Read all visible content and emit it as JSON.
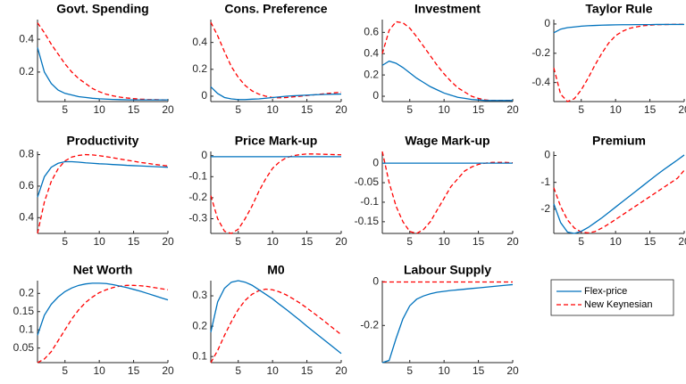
{
  "chart_data": [
    {
      "type": "line",
      "title": "Govt. Spending",
      "x": [
        1,
        2,
        3,
        4,
        5,
        6,
        7,
        8,
        9,
        10,
        11,
        12,
        13,
        14,
        15,
        16,
        17,
        18,
        19,
        20
      ],
      "xlim": [
        1,
        20
      ],
      "xticks": [
        5,
        10,
        15,
        20
      ],
      "ylim": [
        0.02,
        0.52
      ],
      "yticks": [
        0.2,
        0.4
      ],
      "series": [
        {
          "values": [
            0.35,
            0.2,
            0.13,
            0.09,
            0.07,
            0.06,
            0.05,
            0.045,
            0.04,
            0.037,
            0.035,
            0.033,
            0.032,
            0.031,
            0.03,
            0.03,
            0.03,
            0.03,
            0.03,
            0.03
          ]
        },
        {
          "values": [
            0.5,
            0.44,
            0.37,
            0.31,
            0.25,
            0.2,
            0.16,
            0.13,
            0.1,
            0.08,
            0.065,
            0.055,
            0.047,
            0.042,
            0.038,
            0.035,
            0.033,
            0.032,
            0.031,
            0.03
          ]
        }
      ]
    },
    {
      "type": "line",
      "title": "Cons. Preference",
      "x": [
        1,
        2,
        3,
        4,
        5,
        6,
        7,
        8,
        9,
        10,
        11,
        12,
        13,
        14,
        15,
        16,
        17,
        18,
        19,
        20
      ],
      "xlim": [
        1,
        20
      ],
      "xticks": [
        5,
        10,
        15,
        20
      ],
      "ylim": [
        -0.04,
        0.57
      ],
      "yticks": [
        0,
        0.2,
        0.4
      ],
      "series": [
        {
          "values": [
            0.07,
            0.02,
            -0.01,
            -0.02,
            -0.025,
            -0.025,
            -0.022,
            -0.02,
            -0.015,
            -0.01,
            -0.005,
            0,
            0.003,
            0.005,
            0.008,
            0.01,
            0.012,
            0.014,
            0.015,
            0.016
          ]
        },
        {
          "values": [
            0.55,
            0.45,
            0.33,
            0.22,
            0.14,
            0.08,
            0.04,
            0.015,
            0,
            -0.01,
            -0.012,
            -0.01,
            -0.005,
            0,
            0.005,
            0.01,
            0.015,
            0.02,
            0.025,
            0.03
          ]
        }
      ]
    },
    {
      "type": "line",
      "title": "Investment",
      "x": [
        1,
        2,
        3,
        4,
        5,
        6,
        7,
        8,
        9,
        10,
        11,
        12,
        13,
        14,
        15,
        16,
        17,
        18,
        19,
        20
      ],
      "xlim": [
        1,
        20
      ],
      "xticks": [
        5,
        10,
        15,
        20
      ],
      "ylim": [
        -0.05,
        0.72
      ],
      "yticks": [
        0,
        0.2,
        0.4,
        0.6
      ],
      "series": [
        {
          "values": [
            0.29,
            0.33,
            0.31,
            0.27,
            0.22,
            0.17,
            0.13,
            0.09,
            0.06,
            0.03,
            0.01,
            -0.01,
            -0.02,
            -0.03,
            -0.035,
            -0.04,
            -0.04,
            -0.04,
            -0.04,
            -0.04
          ]
        },
        {
          "values": [
            0.4,
            0.62,
            0.7,
            0.69,
            0.64,
            0.56,
            0.47,
            0.38,
            0.29,
            0.21,
            0.14,
            0.08,
            0.04,
            0,
            -0.02,
            -0.035,
            -0.04,
            -0.04,
            -0.04,
            -0.04
          ]
        }
      ]
    },
    {
      "type": "line",
      "title": "Taylor Rule",
      "x": [
        1,
        2,
        3,
        4,
        5,
        6,
        7,
        8,
        9,
        10,
        11,
        12,
        13,
        14,
        15,
        16,
        17,
        18,
        19,
        20
      ],
      "xlim": [
        1,
        20
      ],
      "xticks": [
        5,
        10,
        15,
        20
      ],
      "ylim": [
        -0.53,
        0.03
      ],
      "yticks": [
        -0.4,
        -0.2,
        0
      ],
      "series": [
        {
          "values": [
            -0.06,
            -0.035,
            -0.025,
            -0.02,
            -0.015,
            -0.012,
            -0.01,
            -0.008,
            -0.007,
            -0.006,
            -0.005,
            -0.005,
            -0.004,
            -0.004,
            -0.004,
            -0.003,
            -0.003,
            -0.003,
            -0.003,
            -0.003
          ]
        },
        {
          "values": [
            -0.3,
            -0.48,
            -0.53,
            -0.51,
            -0.45,
            -0.37,
            -0.28,
            -0.2,
            -0.13,
            -0.08,
            -0.05,
            -0.03,
            -0.02,
            -0.012,
            -0.008,
            -0.005,
            -0.004,
            -0.003,
            -0.002,
            -0.002
          ]
        }
      ]
    },
    {
      "type": "line",
      "title": "Productivity",
      "x": [
        1,
        2,
        3,
        4,
        5,
        6,
        7,
        8,
        9,
        10,
        11,
        12,
        13,
        14,
        15,
        16,
        17,
        18,
        19,
        20
      ],
      "xlim": [
        1,
        20
      ],
      "xticks": [
        5,
        10,
        15,
        20
      ],
      "ylim": [
        0.3,
        0.82
      ],
      "yticks": [
        0.4,
        0.6,
        0.8
      ],
      "series": [
        {
          "values": [
            0.53,
            0.66,
            0.72,
            0.745,
            0.755,
            0.755,
            0.752,
            0.748,
            0.745,
            0.742,
            0.74,
            0.737,
            0.735,
            0.732,
            0.73,
            0.728,
            0.726,
            0.724,
            0.722,
            0.72
          ]
        },
        {
          "values": [
            0.3,
            0.5,
            0.63,
            0.71,
            0.76,
            0.785,
            0.795,
            0.8,
            0.798,
            0.793,
            0.787,
            0.78,
            0.772,
            0.765,
            0.758,
            0.75,
            0.745,
            0.738,
            0.733,
            0.728
          ]
        }
      ]
    },
    {
      "type": "line",
      "title": "Price Mark-up",
      "x": [
        1,
        2,
        3,
        4,
        5,
        6,
        7,
        8,
        9,
        10,
        11,
        12,
        13,
        14,
        15,
        16,
        17,
        18,
        19,
        20
      ],
      "xlim": [
        1,
        20
      ],
      "xticks": [
        5,
        10,
        15,
        20
      ],
      "ylim": [
        -0.37,
        0.02
      ],
      "yticks": [
        -0.3,
        -0.2,
        -0.1,
        0
      ],
      "series": [
        {
          "values": [
            -0.005,
            -0.005,
            -0.005,
            -0.005,
            -0.005,
            -0.005,
            -0.005,
            -0.005,
            -0.005,
            -0.005,
            -0.005,
            -0.005,
            -0.005,
            -0.005,
            -0.005,
            -0.005,
            -0.005,
            -0.005,
            -0.005,
            -0.005
          ]
        },
        {
          "values": [
            -0.19,
            -0.3,
            -0.36,
            -0.37,
            -0.35,
            -0.3,
            -0.24,
            -0.17,
            -0.11,
            -0.06,
            -0.03,
            -0.01,
            0,
            0.005,
            0.008,
            0.008,
            0.007,
            0.006,
            0.005,
            0.004
          ]
        }
      ]
    },
    {
      "type": "line",
      "title": "Wage Mark-up",
      "x": [
        1,
        2,
        3,
        4,
        5,
        6,
        7,
        8,
        9,
        10,
        11,
        12,
        13,
        14,
        15,
        16,
        17,
        18,
        19,
        20
      ],
      "xlim": [
        1,
        20
      ],
      "xticks": [
        5,
        10,
        15,
        20
      ],
      "ylim": [
        -0.18,
        0.03
      ],
      "yticks": [
        -0.15,
        -0.1,
        -0.05,
        0
      ],
      "series": [
        {
          "values": [
            0,
            0,
            0,
            0,
            0,
            0,
            0,
            0,
            0,
            0,
            0,
            0,
            0,
            0,
            0,
            0,
            0,
            0,
            0,
            0
          ]
        },
        {
          "values": [
            0.03,
            -0.05,
            -0.11,
            -0.15,
            -0.175,
            -0.18,
            -0.17,
            -0.15,
            -0.12,
            -0.09,
            -0.06,
            -0.04,
            -0.02,
            -0.01,
            -0.003,
            0,
            0.002,
            0.002,
            0.002,
            0.001
          ]
        }
      ]
    },
    {
      "type": "line",
      "title": "Premium",
      "x": [
        1,
        2,
        3,
        4,
        5,
        6,
        7,
        8,
        9,
        10,
        11,
        12,
        13,
        14,
        15,
        16,
        17,
        18,
        19,
        20
      ],
      "xlim": [
        1,
        20
      ],
      "xticks": [
        5,
        10,
        15,
        20
      ],
      "ylim": [
        -2.9,
        0.15
      ],
      "yticks": [
        -2,
        -1,
        0
      ],
      "series": [
        {
          "values": [
            -1.8,
            -2.5,
            -2.85,
            -2.9,
            -2.82,
            -2.68,
            -2.5,
            -2.32,
            -2.12,
            -1.92,
            -1.72,
            -1.52,
            -1.32,
            -1.12,
            -0.92,
            -0.72,
            -0.53,
            -0.35,
            -0.17,
            0.02
          ]
        },
        {
          "values": [
            -1.2,
            -1.9,
            -2.4,
            -2.7,
            -2.85,
            -2.88,
            -2.83,
            -2.7,
            -2.55,
            -2.38,
            -2.21,
            -2.04,
            -1.87,
            -1.7,
            -1.53,
            -1.36,
            -1.19,
            -1.02,
            -0.85,
            -0.55
          ]
        }
      ]
    },
    {
      "type": "line",
      "title": "Net Worth",
      "x": [
        1,
        2,
        3,
        4,
        5,
        6,
        7,
        8,
        9,
        10,
        11,
        12,
        13,
        14,
        15,
        16,
        17,
        18,
        19,
        20
      ],
      "xlim": [
        1,
        20
      ],
      "xticks": [
        5,
        10,
        15,
        20
      ],
      "ylim": [
        0.01,
        0.235
      ],
      "yticks": [
        0.05,
        0.1,
        0.15,
        0.2
      ],
      "series": [
        {
          "values": [
            0.085,
            0.14,
            0.17,
            0.19,
            0.205,
            0.215,
            0.222,
            0.226,
            0.228,
            0.228,
            0.227,
            0.224,
            0.22,
            0.216,
            0.211,
            0.206,
            0.2,
            0.194,
            0.188,
            0.182
          ]
        },
        {
          "values": [
            0.01,
            0.02,
            0.04,
            0.07,
            0.1,
            0.13,
            0.155,
            0.175,
            0.19,
            0.202,
            0.21,
            0.216,
            0.22,
            0.222,
            0.222,
            0.221,
            0.219,
            0.216,
            0.213,
            0.21
          ]
        }
      ]
    },
    {
      "type": "line",
      "title": "M0",
      "x": [
        1,
        2,
        3,
        4,
        5,
        6,
        7,
        8,
        9,
        10,
        11,
        12,
        13,
        14,
        15,
        16,
        17,
        18,
        19,
        20
      ],
      "xlim": [
        1,
        20
      ],
      "xticks": [
        5,
        10,
        15,
        20
      ],
      "ylim": [
        0.08,
        0.35
      ],
      "yticks": [
        0.1,
        0.2,
        0.3
      ],
      "series": [
        {
          "values": [
            0.18,
            0.28,
            0.325,
            0.345,
            0.35,
            0.345,
            0.335,
            0.32,
            0.305,
            0.29,
            0.272,
            0.255,
            0.237,
            0.219,
            0.2,
            0.182,
            0.164,
            0.146,
            0.128,
            0.11
          ]
        },
        {
          "values": [
            0.08,
            0.12,
            0.17,
            0.215,
            0.255,
            0.285,
            0.305,
            0.317,
            0.322,
            0.32,
            0.313,
            0.303,
            0.29,
            0.276,
            0.26,
            0.243,
            0.226,
            0.208,
            0.19,
            0.172
          ]
        }
      ]
    },
    {
      "type": "line",
      "title": "Labour Supply",
      "x": [
        1,
        2,
        3,
        4,
        5,
        6,
        7,
        8,
        9,
        10,
        11,
        12,
        13,
        14,
        15,
        16,
        17,
        18,
        19,
        20
      ],
      "xlim": [
        1,
        20
      ],
      "xticks": [
        5,
        10,
        15,
        20
      ],
      "ylim": [
        -0.37,
        0.005
      ],
      "yticks": [
        -0.2,
        0
      ],
      "series": [
        {
          "values": [
            -0.37,
            -0.36,
            -0.26,
            -0.17,
            -0.11,
            -0.08,
            -0.065,
            -0.055,
            -0.048,
            -0.044,
            -0.04,
            -0.037,
            -0.034,
            -0.031,
            -0.028,
            -0.025,
            -0.022,
            -0.019,
            -0.016,
            -0.013
          ]
        },
        {
          "values": [
            -0.001,
            -0.001,
            -0.001,
            -0.001,
            -0.001,
            -0.001,
            -0.001,
            -0.001,
            -0.001,
            -0.001,
            -0.001,
            -0.001,
            -0.001,
            -0.001,
            -0.001,
            -0.001,
            -0.001,
            -0.001,
            -0.001,
            -0.001
          ]
        }
      ]
    }
  ],
  "legend": [
    {
      "name": "Flex-price",
      "color": "#0072bd",
      "dash": false
    },
    {
      "name": "New Keynesian",
      "color": "#ff0000",
      "dash": true
    }
  ]
}
